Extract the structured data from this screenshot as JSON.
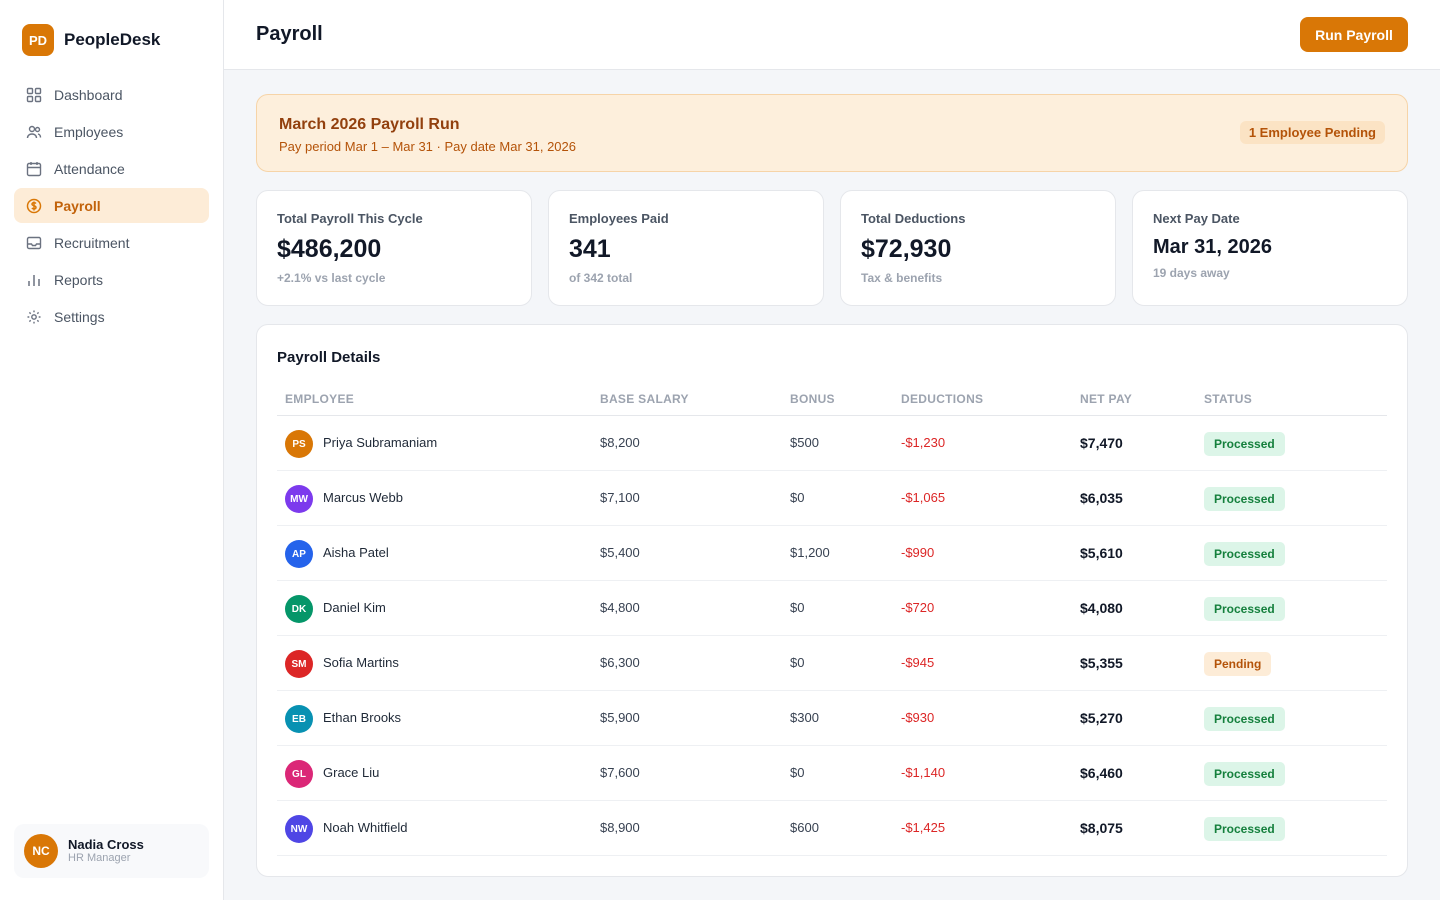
{
  "brand": {
    "logo": "PD",
    "name": "PeopleDesk"
  },
  "nav": [
    {
      "label": "Dashboard",
      "icon": "grid-icon",
      "active": false
    },
    {
      "label": "Employees",
      "icon": "users-icon",
      "active": false
    },
    {
      "label": "Attendance",
      "icon": "calendar-icon",
      "active": false
    },
    {
      "label": "Payroll",
      "icon": "dollar-circle-icon",
      "active": true
    },
    {
      "label": "Recruitment",
      "icon": "inbox-icon",
      "active": false
    },
    {
      "label": "Reports",
      "icon": "bar-chart-icon",
      "active": false
    },
    {
      "label": "Settings",
      "icon": "gear-icon",
      "active": false
    }
  ],
  "user": {
    "initials": "NC",
    "name": "Nadia Cross",
    "role": "HR Manager"
  },
  "header": {
    "title": "Payroll",
    "action_label": "Run Payroll"
  },
  "banner": {
    "title": "March 2026 Payroll Run",
    "subtitle": "Pay period Mar 1 – Mar 31 · Pay date Mar 31, 2026",
    "badge": "1 Employee Pending"
  },
  "stats": [
    {
      "label": "Total Payroll This Cycle",
      "value": "$486,200",
      "sub": "+2.1% vs last cycle"
    },
    {
      "label": "Employees Paid",
      "value": "341",
      "sub": "of 342 total"
    },
    {
      "label": "Total Deductions",
      "value": "$72,930",
      "sub": "Tax & benefits"
    },
    {
      "label": "Next Pay Date",
      "value": "Mar 31, 2026",
      "sub": "19 days away"
    }
  ],
  "table": {
    "title": "Payroll Details",
    "columns": [
      "EMPLOYEE",
      "BASE SALARY",
      "BONUS",
      "DEDUCTIONS",
      "NET PAY",
      "STATUS"
    ],
    "rows": [
      {
        "initials": "PS",
        "color": "#d97706",
        "name": "Priya Subramaniam",
        "base": "$8,200",
        "bonus": "$500",
        "deductions": "-$1,230",
        "net": "$7,470",
        "status": "Processed"
      },
      {
        "initials": "MW",
        "color": "#7c3aed",
        "name": "Marcus Webb",
        "base": "$7,100",
        "bonus": "$0",
        "deductions": "-$1,065",
        "net": "$6,035",
        "status": "Processed"
      },
      {
        "initials": "AP",
        "color": "#2563eb",
        "name": "Aisha Patel",
        "base": "$5,400",
        "bonus": "$1,200",
        "deductions": "-$990",
        "net": "$5,610",
        "status": "Processed"
      },
      {
        "initials": "DK",
        "color": "#059669",
        "name": "Daniel Kim",
        "base": "$4,800",
        "bonus": "$0",
        "deductions": "-$720",
        "net": "$4,080",
        "status": "Processed"
      },
      {
        "initials": "SM",
        "color": "#dc2626",
        "name": "Sofia Martins",
        "base": "$6,300",
        "bonus": "$0",
        "deductions": "-$945",
        "net": "$5,355",
        "status": "Pending"
      },
      {
        "initials": "EB",
        "color": "#0891b2",
        "name": "Ethan Brooks",
        "base": "$5,900",
        "bonus": "$300",
        "deductions": "-$930",
        "net": "$5,270",
        "status": "Processed"
      },
      {
        "initials": "GL",
        "color": "#db2777",
        "name": "Grace Liu",
        "base": "$7,600",
        "bonus": "$0",
        "deductions": "-$1,140",
        "net": "$6,460",
        "status": "Processed"
      },
      {
        "initials": "NW",
        "color": "#4f46e5",
        "name": "Noah Whitfield",
        "base": "$8,900",
        "bonus": "$600",
        "deductions": "-$1,425",
        "net": "$8,075",
        "status": "Processed"
      }
    ]
  }
}
